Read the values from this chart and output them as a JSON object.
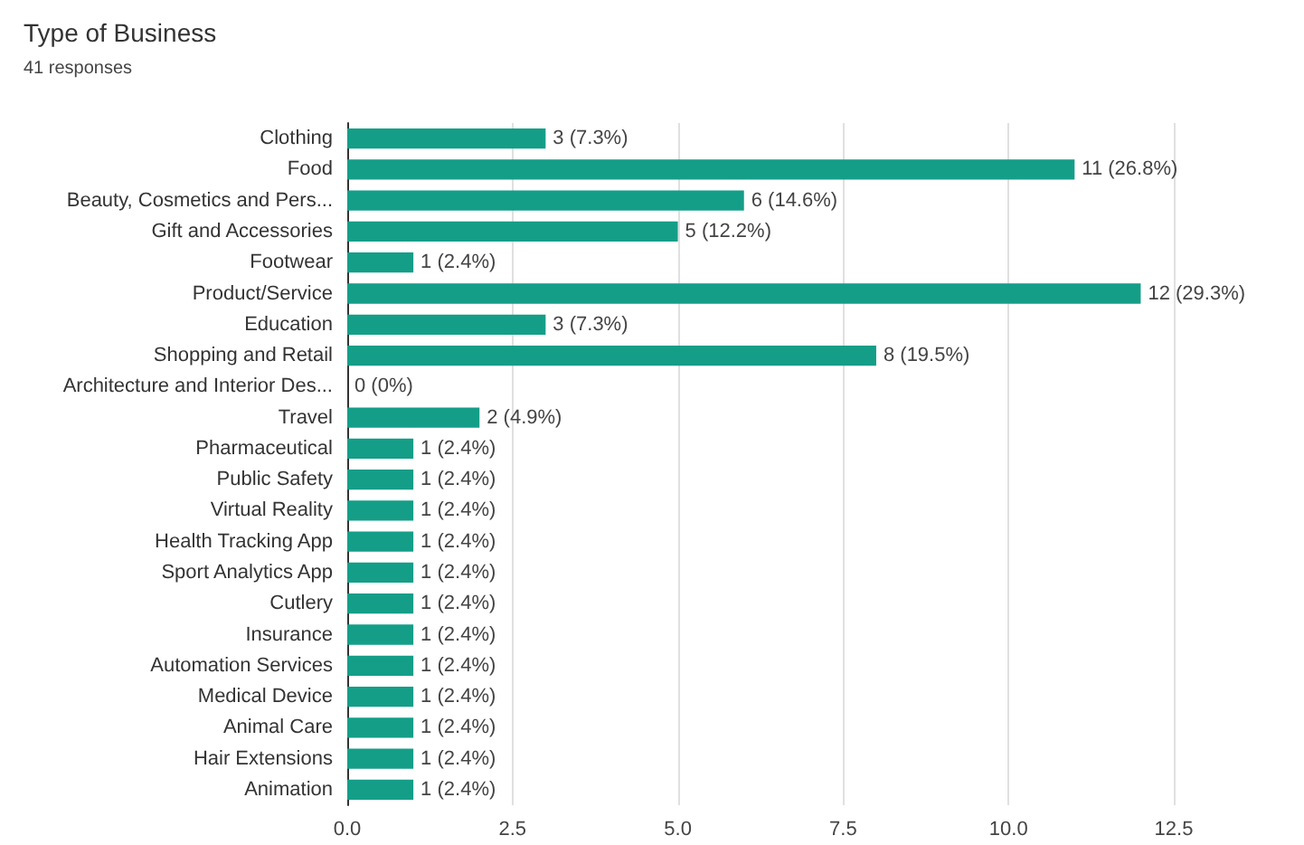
{
  "chart_data": {
    "type": "bar",
    "orientation": "horizontal",
    "title": "Type of Business",
    "subtitle": "41 responses",
    "categories": [
      "Clothing",
      "Food",
      "Beauty, Cosmetics and Pers...",
      "Gift and Accessories",
      "Footwear",
      "Product/Service",
      "Education",
      "Shopping and Retail",
      "Architecture and Interior Des...",
      "Travel",
      "Pharmaceutical",
      "Public Safety",
      "Virtual Reality",
      "Health Tracking App",
      "Sport Analytics App",
      "Cutlery",
      "Insurance",
      "Automation Services",
      "Medical Device",
      "Animal Care",
      "Hair Extensions",
      "Animation"
    ],
    "values": [
      3,
      11,
      6,
      5,
      1,
      12,
      3,
      8,
      0,
      2,
      1,
      1,
      1,
      1,
      1,
      1,
      1,
      1,
      1,
      1,
      1,
      1
    ],
    "value_labels": [
      "3 (7.3%)",
      "11 (26.8%)",
      "6 (14.6%)",
      "5 (12.2%)",
      "1 (2.4%)",
      "12 (29.3%)",
      "3 (7.3%)",
      "8 (19.5%)",
      "0 (0%)",
      "2 (4.9%)",
      "1 (2.4%)",
      "1 (2.4%)",
      "1 (2.4%)",
      "1 (2.4%)",
      "1 (2.4%)",
      "1 (2.4%)",
      "1 (2.4%)",
      "1 (2.4%)",
      "1 (2.4%)",
      "1 (2.4%)",
      "1 (2.4%)",
      "1 (2.4%)"
    ],
    "color": "#149e88",
    "xlim": [
      0,
      12.5
    ],
    "xticks": [
      {
        "value": 0,
        "label": "0.0"
      },
      {
        "value": 2.5,
        "label": "2.5"
      },
      {
        "value": 5,
        "label": "5.0"
      },
      {
        "value": 7.5,
        "label": "7.5"
      },
      {
        "value": 10,
        "label": "10.0"
      },
      {
        "value": 12.5,
        "label": "12.5"
      }
    ],
    "grid": "x"
  }
}
